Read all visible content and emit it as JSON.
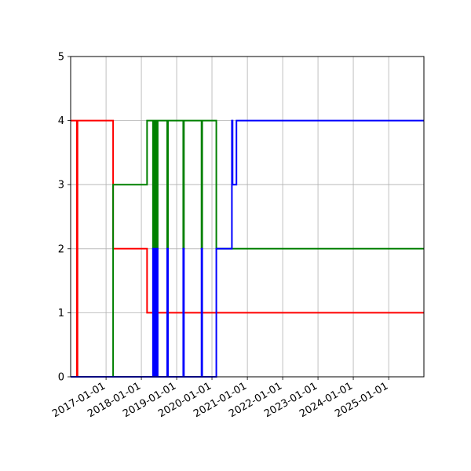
{
  "chart_data": {
    "type": "line",
    "step": "post",
    "title": "",
    "xlabel": "",
    "ylabel": "",
    "x_axis": "date",
    "xlim": [
      "2016-01-01",
      "2025-12-31"
    ],
    "ylim": [
      0,
      5
    ],
    "x_ticks": [
      "2017-01-01",
      "2018-01-01",
      "2019-01-01",
      "2020-01-01",
      "2021-01-01",
      "2022-01-01",
      "2023-01-01",
      "2024-01-01",
      "2025-01-01"
    ],
    "y_ticks": [
      0,
      1,
      2,
      3,
      4,
      5
    ],
    "grid": true,
    "legend": "none",
    "series": [
      {
        "color": "#ff0000",
        "points": [
          {
            "x": "2016-01-01",
            "y": 4
          },
          {
            "x": "2016-03-05",
            "y": 0
          },
          {
            "x": "2016-03-12",
            "y": 4
          },
          {
            "x": "2017-03-15",
            "y": 2
          },
          {
            "x": "2018-03-01",
            "y": 1
          },
          {
            "x": "2025-12-31",
            "y": 1
          }
        ]
      },
      {
        "color": "#008000",
        "points": [
          {
            "x": "2016-01-01",
            "y": 0
          },
          {
            "x": "2017-03-15",
            "y": 3
          },
          {
            "x": "2018-03-01",
            "y": 4
          },
          {
            "x": "2018-05-01",
            "y": 2
          },
          {
            "x": "2018-05-08",
            "y": 4
          },
          {
            "x": "2018-05-15",
            "y": 2
          },
          {
            "x": "2018-05-22",
            "y": 4
          },
          {
            "x": "2018-05-29",
            "y": 2
          },
          {
            "x": "2018-06-05",
            "y": 4
          },
          {
            "x": "2018-06-12",
            "y": 2
          },
          {
            "x": "2018-06-19",
            "y": 4
          },
          {
            "x": "2018-09-25",
            "y": 2
          },
          {
            "x": "2018-10-03",
            "y": 4
          },
          {
            "x": "2019-03-10",
            "y": 2
          },
          {
            "x": "2019-03-17",
            "y": 4
          },
          {
            "x": "2019-09-15",
            "y": 2
          },
          {
            "x": "2019-09-22",
            "y": 4
          },
          {
            "x": "2020-02-15",
            "y": 2
          },
          {
            "x": "2025-12-31",
            "y": 2
          }
        ]
      },
      {
        "color": "#0000ff",
        "points": [
          {
            "x": "2016-01-01",
            "y": 0
          },
          {
            "x": "2018-05-01",
            "y": 2
          },
          {
            "x": "2018-05-08",
            "y": 0
          },
          {
            "x": "2018-05-15",
            "y": 2
          },
          {
            "x": "2018-05-22",
            "y": 0
          },
          {
            "x": "2018-05-29",
            "y": 2
          },
          {
            "x": "2018-06-05",
            "y": 0
          },
          {
            "x": "2018-06-12",
            "y": 2
          },
          {
            "x": "2018-06-19",
            "y": 0
          },
          {
            "x": "2018-09-25",
            "y": 2
          },
          {
            "x": "2018-10-03",
            "y": 0
          },
          {
            "x": "2019-03-10",
            "y": 2
          },
          {
            "x": "2019-03-17",
            "y": 0
          },
          {
            "x": "2019-09-15",
            "y": 2
          },
          {
            "x": "2019-09-22",
            "y": 0
          },
          {
            "x": "2020-02-15",
            "y": 2
          },
          {
            "x": "2020-07-25",
            "y": 4
          },
          {
            "x": "2020-08-01",
            "y": 3
          },
          {
            "x": "2020-09-10",
            "y": 4
          },
          {
            "x": "2025-12-31",
            "y": 4
          }
        ]
      }
    ]
  }
}
